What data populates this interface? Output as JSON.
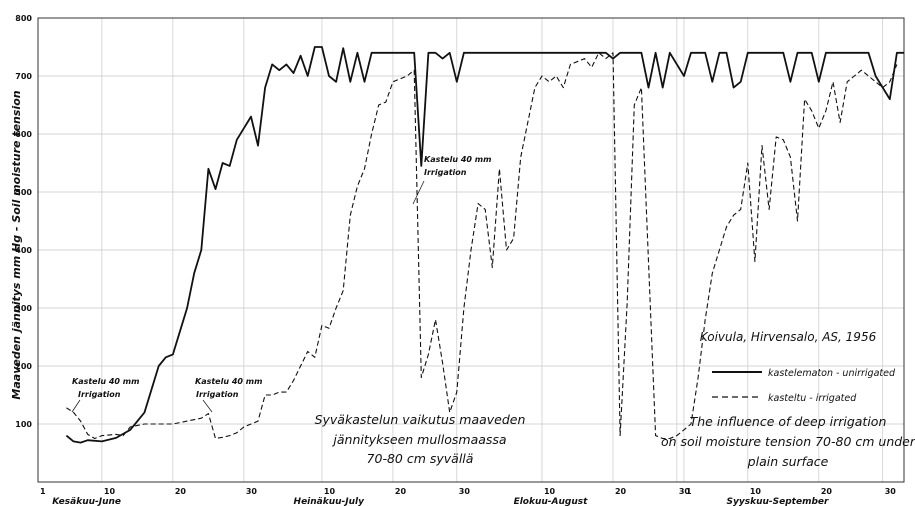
{
  "chart_data": {
    "type": "line",
    "ylabel": "Maaveden jännitys mm Hg - Soil moisture tension",
    "ylim": [
      0,
      800
    ],
    "yticks": [
      100,
      200,
      300,
      400,
      500,
      600,
      700,
      800
    ],
    "xlim": [
      1,
      123
    ],
    "grid": true,
    "legend_position": "right",
    "day_ticks": [
      {
        "day": 1,
        "label": "1"
      },
      {
        "day": 10,
        "label": "10"
      },
      {
        "day": 20,
        "label": "20"
      },
      {
        "day": 30,
        "label": "30"
      },
      {
        "day": 41,
        "label": "10"
      },
      {
        "day": 51,
        "label": "20"
      },
      {
        "day": 60,
        "label": "30"
      },
      {
        "day": 72,
        "label": "10"
      },
      {
        "day": 82,
        "label": "20"
      },
      {
        "day": 91,
        "label": "30"
      },
      {
        "day": 92,
        "label": "1"
      },
      {
        "day": 101,
        "label": "10"
      },
      {
        "day": 111,
        "label": "20"
      },
      {
        "day": 120,
        "label": "30"
      }
    ],
    "month_labels": [
      {
        "day": 3,
        "label": "Kesäkuu-June"
      },
      {
        "day": 37,
        "label": "Heinäkuu-July"
      },
      {
        "day": 68,
        "label": "Elokuu-August"
      },
      {
        "day": 98,
        "label": "Syyskuu-September"
      }
    ],
    "series": [
      {
        "name": "kastelematon - unirrigated",
        "style": "solid",
        "points": [
          [
            5,
            80
          ],
          [
            6,
            70
          ],
          [
            7,
            68
          ],
          [
            8,
            72
          ],
          [
            10,
            70
          ],
          [
            12,
            76
          ],
          [
            14,
            90
          ],
          [
            16,
            120
          ],
          [
            17,
            160
          ],
          [
            18,
            200
          ],
          [
            19,
            215
          ],
          [
            20,
            220
          ],
          [
            21,
            260
          ],
          [
            22,
            300
          ],
          [
            23,
            360
          ],
          [
            24,
            400
          ],
          [
            25,
            540
          ],
          [
            26,
            505
          ],
          [
            27,
            550
          ],
          [
            28,
            545
          ],
          [
            29,
            590
          ],
          [
            30,
            610
          ],
          [
            31,
            630
          ],
          [
            32,
            580
          ],
          [
            33,
            680
          ],
          [
            34,
            720
          ],
          [
            35,
            710
          ],
          [
            36,
            720
          ],
          [
            37,
            705
          ],
          [
            38,
            735
          ],
          [
            39,
            700
          ],
          [
            40,
            750
          ],
          [
            41,
            750
          ],
          [
            42,
            700
          ],
          [
            43,
            690
          ],
          [
            44,
            748
          ],
          [
            45,
            690
          ],
          [
            46,
            740
          ],
          [
            47,
            690
          ],
          [
            48,
            740
          ],
          [
            50,
            740
          ],
          [
            52,
            740
          ],
          [
            54,
            740
          ],
          [
            55,
            545
          ],
          [
            56,
            740
          ],
          [
            57,
            740
          ],
          [
            58,
            730
          ],
          [
            59,
            740
          ],
          [
            60,
            690
          ],
          [
            61,
            740
          ],
          [
            63,
            740
          ],
          [
            66,
            740
          ],
          [
            70,
            740
          ],
          [
            74,
            740
          ],
          [
            78,
            740
          ],
          [
            81,
            740
          ],
          [
            82,
            730
          ],
          [
            83,
            740
          ],
          [
            86,
            740
          ],
          [
            87,
            680
          ],
          [
            88,
            740
          ],
          [
            89,
            680
          ],
          [
            90,
            740
          ],
          [
            92,
            700
          ],
          [
            93,
            740
          ],
          [
            95,
            740
          ],
          [
            96,
            690
          ],
          [
            97,
            740
          ],
          [
            98,
            740
          ],
          [
            99,
            680
          ],
          [
            100,
            690
          ],
          [
            101,
            740
          ],
          [
            103,
            740
          ],
          [
            104,
            740
          ],
          [
            106,
            740
          ],
          [
            107,
            690
          ],
          [
            108,
            740
          ],
          [
            110,
            740
          ],
          [
            111,
            690
          ],
          [
            112,
            740
          ],
          [
            116,
            740
          ],
          [
            118,
            740
          ],
          [
            119,
            700
          ],
          [
            120,
            680
          ],
          [
            121,
            660
          ],
          [
            122,
            740
          ],
          [
            123,
            740
          ]
        ]
      },
      {
        "name": "kasteltu - irrigated",
        "style": "dashed",
        "points": [
          [
            5,
            128
          ],
          [
            6,
            120
          ],
          [
            7,
            105
          ],
          [
            8,
            82
          ],
          [
            9,
            75
          ],
          [
            10,
            80
          ],
          [
            12,
            82
          ],
          [
            13,
            80
          ],
          [
            14,
            95
          ],
          [
            16,
            100
          ],
          [
            18,
            100
          ],
          [
            20,
            100
          ],
          [
            22,
            105
          ],
          [
            24,
            110
          ],
          [
            25,
            118
          ],
          [
            26,
            75
          ],
          [
            27,
            77
          ],
          [
            28,
            80
          ],
          [
            29,
            85
          ],
          [
            30,
            95
          ],
          [
            31,
            100
          ],
          [
            32,
            105
          ],
          [
            33,
            150
          ],
          [
            34,
            150
          ],
          [
            35,
            155
          ],
          [
            36,
            155
          ],
          [
            37,
            175
          ],
          [
            38,
            200
          ],
          [
            39,
            225
          ],
          [
            40,
            215
          ],
          [
            41,
            270
          ],
          [
            42,
            265
          ],
          [
            43,
            300
          ],
          [
            44,
            330
          ],
          [
            45,
            460
          ],
          [
            46,
            510
          ],
          [
            47,
            540
          ],
          [
            48,
            600
          ],
          [
            49,
            650
          ],
          [
            50,
            655
          ],
          [
            51,
            690
          ],
          [
            52,
            695
          ],
          [
            53,
            700
          ],
          [
            54,
            710
          ],
          [
            55,
            180
          ],
          [
            56,
            220
          ],
          [
            57,
            280
          ],
          [
            58,
            205
          ],
          [
            59,
            120
          ],
          [
            60,
            155
          ],
          [
            61,
            300
          ],
          [
            62,
            400
          ],
          [
            63,
            480
          ],
          [
            64,
            470
          ],
          [
            65,
            370
          ],
          [
            66,
            540
          ],
          [
            67,
            400
          ],
          [
            68,
            420
          ],
          [
            69,
            560
          ],
          [
            70,
            620
          ],
          [
            71,
            680
          ],
          [
            72,
            700
          ],
          [
            73,
            690
          ],
          [
            74,
            700
          ],
          [
            75,
            680
          ],
          [
            76,
            720
          ],
          [
            78,
            730
          ],
          [
            79,
            715
          ],
          [
            80,
            740
          ],
          [
            81,
            730
          ],
          [
            82,
            740
          ],
          [
            83,
            80
          ],
          [
            84,
            310
          ],
          [
            85,
            650
          ],
          [
            86,
            680
          ],
          [
            87,
            380
          ],
          [
            88,
            80
          ],
          [
            89,
            75
          ],
          [
            90,
            75
          ],
          [
            91,
            80
          ],
          [
            92,
            90
          ],
          [
            93,
            100
          ],
          [
            94,
            180
          ],
          [
            95,
            280
          ],
          [
            96,
            360
          ],
          [
            97,
            400
          ],
          [
            98,
            440
          ],
          [
            99,
            460
          ],
          [
            100,
            470
          ],
          [
            101,
            550
          ],
          [
            102,
            380
          ],
          [
            103,
            580
          ],
          [
            104,
            470
          ],
          [
            105,
            595
          ],
          [
            106,
            590
          ],
          [
            107,
            560
          ],
          [
            108,
            450
          ],
          [
            109,
            660
          ],
          [
            110,
            640
          ],
          [
            111,
            610
          ],
          [
            112,
            640
          ],
          [
            113,
            690
          ],
          [
            114,
            620
          ],
          [
            115,
            690
          ],
          [
            116,
            700
          ],
          [
            117,
            710
          ],
          [
            118,
            700
          ],
          [
            120,
            680
          ],
          [
            121,
            690
          ],
          [
            122,
            720
          ]
        ]
      }
    ],
    "annotations": [
      {
        "line1": "Kastelu 40 mm",
        "line2": "Irrigation"
      },
      {
        "line1": "Kastelu 40 mm",
        "line2": "Irrigation"
      },
      {
        "line1": "Kastelu 40 mm",
        "line2": "Irrigation"
      }
    ],
    "caption_fi": [
      "Syväkastelun vaikutus maaveden",
      "jännitykseen mullosmaassa",
      "70-80 cm syvällä"
    ],
    "caption_en": [
      "The influence of deep irrigation",
      "on soil moisture tension 70-80 cm under",
      "plain surface"
    ],
    "credit": "Koivula, Hirvensalo, AS, 1956"
  }
}
